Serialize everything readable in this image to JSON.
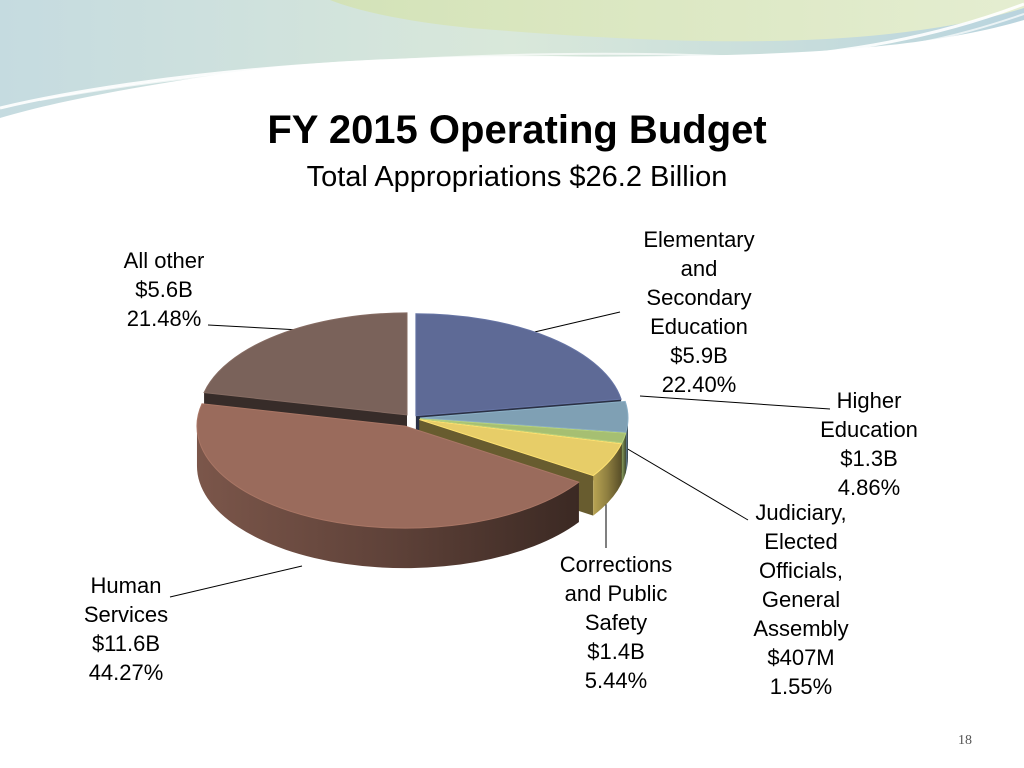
{
  "slide": {
    "title": "FY 2015 Operating Budget",
    "subtitle": "Total Appropriations $26.2 Billion",
    "page_number": "18"
  },
  "chart_data": {
    "type": "pie",
    "style": "3d-exploded",
    "title": "FY 2015 Operating Budget",
    "subtitle": "Total Appropriations $26.2 Billion",
    "total": "$26.2 Billion",
    "slices": [
      {
        "label_lines": [
          "Elementary",
          "and",
          "Secondary",
          "Education"
        ],
        "amount": "$5.9B",
        "percent_text": "22.40%",
        "value": 22.4,
        "color": "#5e6a96"
      },
      {
        "label_lines": [
          "Higher",
          "Education"
        ],
        "amount": "$1.3B",
        "percent_text": "4.86%",
        "value": 4.86,
        "color": "#7fa0b4"
      },
      {
        "label_lines": [
          "Judiciary,",
          "Elected",
          "Officials,",
          "General",
          "Assembly"
        ],
        "amount": "$407M",
        "percent_text": "1.55%",
        "value": 1.55,
        "color": "#a6bf72"
      },
      {
        "label_lines": [
          "Corrections",
          "and Public",
          "Safety"
        ],
        "amount": "$1.4B",
        "percent_text": "5.44%",
        "value": 5.44,
        "color": "#e7cd68"
      },
      {
        "label_lines": [
          "Human",
          "Services"
        ],
        "amount": "$11.6B",
        "percent_text": "44.27%",
        "value": 44.27,
        "color": "#9a6b5c"
      },
      {
        "label_lines": [
          "All other"
        ],
        "amount": "$5.6B",
        "percent_text": "21.48%",
        "value": 21.48,
        "color": "#7a625a"
      }
    ],
    "legend": "none"
  }
}
